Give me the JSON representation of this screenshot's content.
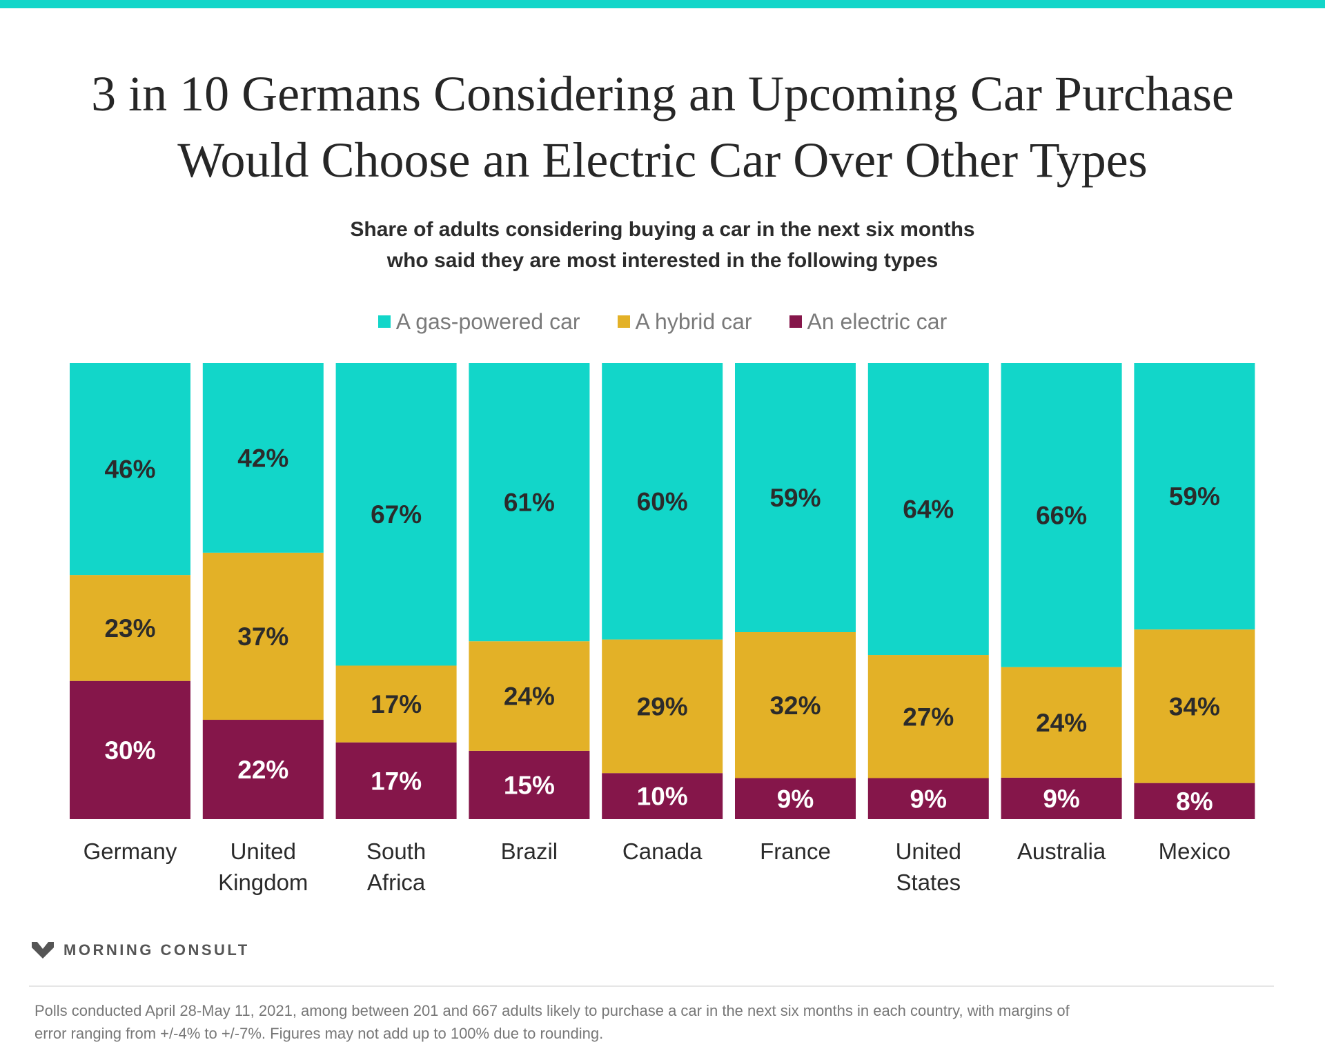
{
  "title_lines": [
    "3 in 10 Germans Considering an Upcoming Car Purchase",
    "Would Choose an Electric Car Over Other Types"
  ],
  "subtitle_lines": [
    "Share of adults considering buying a car in the next six months",
    "who said they are most interested in the following types"
  ],
  "legend": [
    {
      "label": "A gas-powered car",
      "color": "#12d6c9"
    },
    {
      "label": "A hybrid car",
      "color": "#e3b127"
    },
    {
      "label": "An electric car",
      "color": "#85164a"
    }
  ],
  "chart_data": {
    "type": "bar",
    "stacked": true,
    "normalized": true,
    "categories": [
      [
        "Germany"
      ],
      [
        "United",
        "Kingdom"
      ],
      [
        "South",
        "Africa"
      ],
      [
        "Brazil"
      ],
      [
        "Canada"
      ],
      [
        "France"
      ],
      [
        "United",
        "States"
      ],
      [
        "Australia"
      ],
      [
        "Mexico"
      ]
    ],
    "series": [
      {
        "name": "An electric car",
        "color": "#85164a",
        "label_color": "#ffffff",
        "values": [
          30,
          22,
          17,
          15,
          10,
          9,
          9,
          9,
          8
        ]
      },
      {
        "name": "A hybrid car",
        "color": "#e3b127",
        "label_color": "#2b2b2b",
        "values": [
          23,
          37,
          17,
          24,
          29,
          32,
          27,
          24,
          34
        ]
      },
      {
        "name": "A gas-powered car",
        "color": "#12d6c9",
        "label_color": "#2b2b2b",
        "values": [
          46,
          42,
          67,
          61,
          60,
          59,
          64,
          66,
          59
        ]
      }
    ],
    "value_suffix": "%",
    "legend_position": "top-center",
    "grid": false
  },
  "logo": {
    "text": "MORNING CONSULT",
    "mark": "morning-consult-logo-icon"
  },
  "footnote_lines": [
    "Polls conducted April 28-May 11, 2021, among between 201 and 667 adults likely to purchase a car in the next six months in each country, with margins of",
    "error ranging from +/-4% to +/-7%. Figures may not add up to 100% due to rounding."
  ]
}
